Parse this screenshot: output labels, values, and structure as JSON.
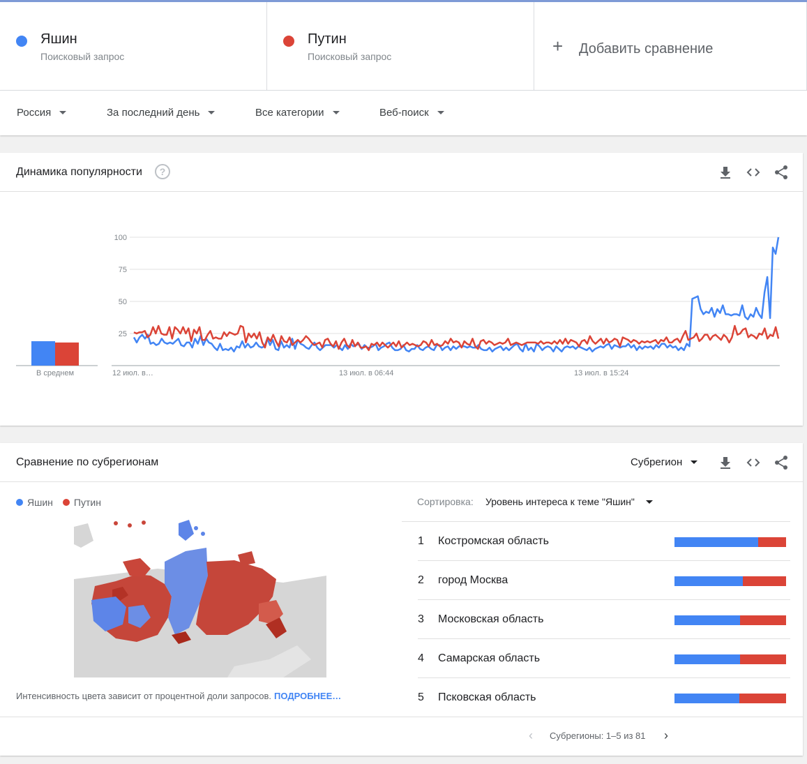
{
  "terms": [
    {
      "name": "Яшин",
      "subtitle": "Поисковый запрос",
      "color": "#4285f4"
    },
    {
      "name": "Путин",
      "subtitle": "Поисковый запрос",
      "color": "#db4437"
    }
  ],
  "add_compare": {
    "icon": "plus-icon",
    "label": "Добавить сравнение"
  },
  "filters": {
    "region": "Россия",
    "period": "За последний день",
    "category": "Все категории",
    "search_type": "Веб-поиск"
  },
  "interest_over_time": {
    "title": "Динамика популярности",
    "help_icon": "?",
    "icons": [
      "download-icon",
      "embed-icon",
      "share-icon"
    ],
    "average_label": "В среднем"
  },
  "chart_data": {
    "type": "line",
    "ylim": [
      0,
      100
    ],
    "y_ticks": [
      "100",
      "75",
      "50",
      "25"
    ],
    "x_tick_labels": [
      "12 июл. в…",
      "13 июл. в 06:44",
      "13 июл. в 15:24"
    ],
    "averages": [
      {
        "name": "Яшин",
        "value": 19
      },
      {
        "name": "Путин",
        "value": 18
      }
    ],
    "series": [
      {
        "name": "Яшин",
        "color": "#4285f4",
        "values": [
          22,
          18,
          22,
          24,
          21,
          24,
          17,
          18,
          16,
          17,
          21,
          18,
          17,
          18,
          17,
          19,
          21,
          16,
          15,
          18,
          18,
          14,
          21,
          17,
          23,
          16,
          21,
          18,
          17,
          14,
          12,
          17,
          12,
          13,
          12,
          14,
          11,
          15,
          14,
          19,
          14,
          17,
          14,
          15,
          18,
          15,
          14,
          15,
          21,
          16,
          20,
          13,
          12,
          19,
          14,
          16,
          14,
          21,
          13,
          20,
          17,
          16,
          14,
          13,
          16,
          18,
          14,
          12,
          14,
          16,
          16,
          16,
          14,
          16,
          14,
          12,
          16,
          13,
          17,
          15,
          16,
          17,
          13,
          16,
          14,
          14,
          15,
          17,
          12,
          14,
          15,
          17,
          18,
          14,
          12,
          12,
          13,
          16,
          12,
          11,
          13,
          13,
          16,
          13,
          12,
          14,
          15,
          13,
          12,
          16,
          16,
          12,
          14,
          15,
          12,
          15,
          13,
          15,
          15,
          15,
          14,
          15,
          14,
          14,
          16,
          13,
          12,
          12,
          14,
          11,
          13,
          14,
          15,
          12,
          14,
          12,
          14,
          16,
          17,
          13,
          11,
          17,
          12,
          14,
          11,
          17,
          15,
          12,
          14,
          15,
          14,
          11,
          15,
          13,
          11,
          14,
          15,
          14,
          15,
          13,
          15,
          14,
          13,
          12,
          14,
          11,
          13,
          14,
          15,
          14,
          16,
          17,
          13,
          16,
          15,
          14,
          15,
          15,
          17,
          14,
          16,
          12,
          15,
          13,
          15,
          14,
          15,
          13,
          16,
          14,
          17,
          17,
          14,
          16,
          14,
          15,
          12,
          14,
          12,
          17,
          15,
          52,
          53,
          54,
          44,
          40,
          42,
          41,
          45,
          38,
          44,
          41,
          47,
          40,
          40,
          39,
          40,
          40,
          39,
          47,
          38,
          36,
          40,
          38,
          45,
          40,
          37,
          57,
          69,
          37,
          92,
          87,
          100
        ]
      },
      {
        "name": "Путин",
        "color": "#db4437",
        "values": [
          26,
          25,
          26,
          26,
          27,
          22,
          24,
          30,
          25,
          31,
          25,
          24,
          24,
          30,
          21,
          30,
          28,
          25,
          30,
          25,
          29,
          19,
          28,
          25,
          30,
          20,
          20,
          24,
          27,
          21,
          22,
          21,
          21,
          26,
          23,
          26,
          25,
          24,
          25,
          31,
          30,
          18,
          25,
          22,
          25,
          21,
          26,
          18,
          14,
          22,
          19,
          24,
          19,
          15,
          23,
          19,
          18,
          22,
          16,
          18,
          20,
          18,
          20,
          23,
          21,
          18,
          16,
          17,
          18,
          14,
          20,
          21,
          17,
          15,
          19,
          13,
          18,
          21,
          16,
          14,
          20,
          15,
          18,
          14,
          14,
          15,
          12,
          17,
          16,
          18,
          15,
          18,
          16,
          14,
          16,
          18,
          15,
          19,
          14,
          16,
          18,
          16,
          17,
          16,
          15,
          16,
          19,
          18,
          15,
          20,
          16,
          17,
          15,
          16,
          19,
          17,
          21,
          18,
          19,
          18,
          14,
          19,
          17,
          16,
          21,
          15,
          13,
          19,
          20,
          17,
          19,
          18,
          16,
          17,
          18,
          17,
          18,
          21,
          16,
          17,
          18,
          17,
          16,
          17,
          18,
          18,
          18,
          18,
          17,
          19,
          17,
          18,
          18,
          17,
          19,
          17,
          20,
          17,
          21,
          17,
          20,
          19,
          18,
          15,
          19,
          20,
          17,
          23,
          19,
          17,
          19,
          21,
          17,
          21,
          18,
          19,
          21,
          20,
          15,
          22,
          21,
          20,
          18,
          20,
          19,
          17,
          19,
          18,
          19,
          18,
          19,
          20,
          17,
          20,
          19,
          22,
          18,
          18,
          20,
          21,
          18,
          23,
          27,
          20,
          21,
          22,
          25,
          19,
          21,
          24,
          24,
          20,
          23,
          24,
          22,
          20,
          24,
          22,
          18,
          22,
          31,
          24,
          25,
          28,
          29,
          22,
          24,
          23,
          21,
          25,
          24,
          29,
          21,
          24,
          23,
          30,
          21
        ]
      }
    ]
  },
  "regions": {
    "title": "Сравнение по субрегионам",
    "dropdown": "Субрегион",
    "icons": [
      "download-icon",
      "embed-icon",
      "share-icon"
    ],
    "legend": [
      "Яшин",
      "Путин"
    ],
    "sort_label": "Сортировка:",
    "sort_value": "Уровень интереса к теме \"Яшин\"",
    "rows": [
      {
        "rank": "1",
        "name": "Костромская область",
        "share_a": 0.75
      },
      {
        "rank": "2",
        "name": "город Москва",
        "share_a": 0.61
      },
      {
        "rank": "3",
        "name": "Московская область",
        "share_a": 0.59
      },
      {
        "rank": "4",
        "name": "Самарская область",
        "share_a": 0.59
      },
      {
        "rank": "5",
        "name": "Псковская область",
        "share_a": 0.58
      }
    ],
    "map_note": "Интенсивность цвета зависит от процентной доли запросов.",
    "map_more": "ПОДРОБНЕЕ…",
    "pager_text": "Субрегионы: 1–5 из 81",
    "pager_prev_icon": "‹",
    "pager_next_icon": "›"
  }
}
